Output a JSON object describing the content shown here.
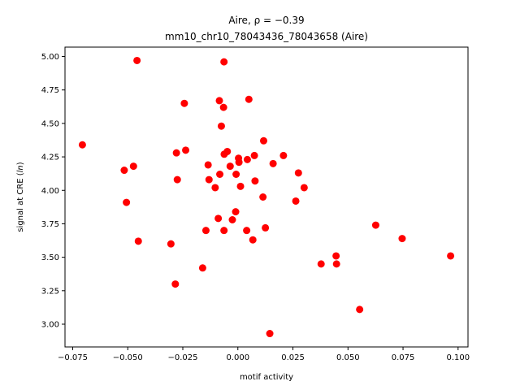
{
  "chart_data": {
    "type": "scatter",
    "title_line1": "Aire, ρ = −0.39",
    "title_line2": "mm10_chr10_78043436_78043658 (Aire)",
    "xlabel": "motif activity",
    "ylabel": "signal at CRE (ln)",
    "xlim": [
      -0.0785,
      0.1045
    ],
    "ylim": [
      2.83,
      5.07
    ],
    "xticks": [
      -0.075,
      -0.05,
      -0.025,
      0.0,
      0.025,
      0.05,
      0.075,
      0.1
    ],
    "xtick_labels": [
      "−0.075",
      "−0.050",
      "−0.025",
      "0.000",
      "0.025",
      "0.050",
      "0.075",
      "0.100"
    ],
    "yticks": [
      3.0,
      3.25,
      3.5,
      3.75,
      4.0,
      4.25,
      4.5,
      4.75,
      5.0
    ],
    "ytick_labels": [
      "3.00",
      "3.25",
      "3.50",
      "3.75",
      "4.00",
      "4.25",
      "4.50",
      "4.75",
      "5.00"
    ],
    "grid": false,
    "marker_color": "#ff0000",
    "points": [
      {
        "x": -0.0706,
        "y": 4.34
      },
      {
        "x": -0.0516,
        "y": 4.15
      },
      {
        "x": -0.0506,
        "y": 3.91
      },
      {
        "x": -0.0474,
        "y": 4.18
      },
      {
        "x": -0.0458,
        "y": 4.97
      },
      {
        "x": -0.0452,
        "y": 3.62
      },
      {
        "x": -0.0304,
        "y": 3.6
      },
      {
        "x": -0.0284,
        "y": 3.3
      },
      {
        "x": -0.0279,
        "y": 4.28
      },
      {
        "x": -0.0275,
        "y": 4.08
      },
      {
        "x": -0.0243,
        "y": 4.65
      },
      {
        "x": -0.0237,
        "y": 4.3
      },
      {
        "x": -0.016,
        "y": 3.42
      },
      {
        "x": -0.0145,
        "y": 3.7
      },
      {
        "x": -0.0135,
        "y": 4.19
      },
      {
        "x": -0.0131,
        "y": 4.08
      },
      {
        "x": -0.0103,
        "y": 4.02
      },
      {
        "x": -0.0089,
        "y": 3.79
      },
      {
        "x": -0.0084,
        "y": 4.67
      },
      {
        "x": -0.0082,
        "y": 4.12
      },
      {
        "x": -0.0075,
        "y": 4.48
      },
      {
        "x": -0.0065,
        "y": 4.62
      },
      {
        "x": -0.0063,
        "y": 4.96
      },
      {
        "x": -0.0063,
        "y": 3.7
      },
      {
        "x": -0.0062,
        "y": 4.27
      },
      {
        "x": -0.0048,
        "y": 4.29
      },
      {
        "x": -0.0035,
        "y": 4.18
      },
      {
        "x": -0.0025,
        "y": 3.78
      },
      {
        "x": -0.001,
        "y": 3.84
      },
      {
        "x": -0.0008,
        "y": 4.12
      },
      {
        "x": 0.0003,
        "y": 4.24
      },
      {
        "x": 0.0005,
        "y": 4.21
      },
      {
        "x": 0.0012,
        "y": 4.03
      },
      {
        "x": 0.004,
        "y": 3.7
      },
      {
        "x": 0.0043,
        "y": 4.23
      },
      {
        "x": 0.005,
        "y": 4.68
      },
      {
        "x": 0.0068,
        "y": 3.63
      },
      {
        "x": 0.0075,
        "y": 4.26
      },
      {
        "x": 0.0078,
        "y": 4.07
      },
      {
        "x": 0.0114,
        "y": 3.95
      },
      {
        "x": 0.0117,
        "y": 4.37
      },
      {
        "x": 0.0125,
        "y": 3.72
      },
      {
        "x": 0.0145,
        "y": 2.93
      },
      {
        "x": 0.016,
        "y": 4.2
      },
      {
        "x": 0.0207,
        "y": 4.26
      },
      {
        "x": 0.0263,
        "y": 3.92
      },
      {
        "x": 0.0275,
        "y": 4.13
      },
      {
        "x": 0.0301,
        "y": 4.02
      },
      {
        "x": 0.0378,
        "y": 3.45
      },
      {
        "x": 0.0446,
        "y": 3.51
      },
      {
        "x": 0.0448,
        "y": 3.45
      },
      {
        "x": 0.0553,
        "y": 3.11
      },
      {
        "x": 0.0626,
        "y": 3.74
      },
      {
        "x": 0.0746,
        "y": 3.64
      },
      {
        "x": 0.0966,
        "y": 3.51
      }
    ]
  }
}
